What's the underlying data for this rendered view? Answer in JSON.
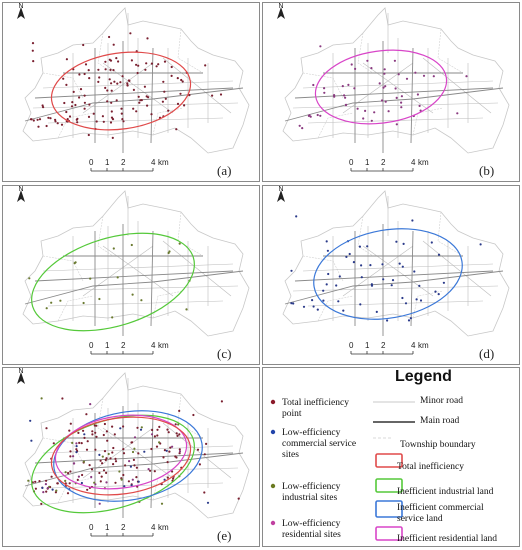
{
  "panels": [
    {
      "label": "(a)",
      "ellipses": [
        {
          "color": "#e04a4a"
        }
      ],
      "points": [
        {
          "color": "#7a2030",
          "density": "high"
        }
      ]
    },
    {
      "label": "(b)",
      "ellipses": [
        {
          "color": "#d845c8"
        }
      ],
      "points": [
        {
          "color": "#8a3a80",
          "density": "medium"
        }
      ]
    },
    {
      "label": "(c)",
      "ellipses": [
        {
          "color": "#55c93a"
        }
      ],
      "points": [
        {
          "color": "#6a7a30",
          "density": "low"
        }
      ]
    },
    {
      "label": "(d)",
      "ellipses": [
        {
          "color": "#3b78d8"
        }
      ],
      "points": [
        {
          "color": "#2a3a8a",
          "density": "medium"
        }
      ]
    },
    {
      "label": "(e)",
      "ellipses": [
        {
          "color": "#55c93a"
        },
        {
          "color": "#3b78d8"
        },
        {
          "color": "#d845c8"
        },
        {
          "color": "#e04a4a"
        }
      ],
      "points": [
        {
          "color": "#7a2030",
          "density": "high"
        },
        {
          "color": "#2a3a8a",
          "density": "low"
        },
        {
          "color": "#6a7a30",
          "density": "low"
        },
        {
          "color": "#8a3a80",
          "density": "low"
        }
      ]
    }
  ],
  "north_label": "N",
  "scale": {
    "ticks": [
      "0",
      "1",
      "2",
      "4"
    ],
    "unit": "km"
  },
  "legend": {
    "title": "Legend",
    "point_items": [
      {
        "label_lines": [
          "Total inefficiency",
          "point"
        ],
        "color": "#8b1a2a"
      },
      {
        "label_lines": [
          "Low-efficiency",
          "commercial service",
          "sites"
        ],
        "color": "#2244aa"
      },
      {
        "label_lines": [
          "Low-efficiency",
          "industrial sites"
        ],
        "color": "#6a7a20"
      },
      {
        "label_lines": [
          "Low-efficiency",
          "residential sites"
        ],
        "color": "#c040a0"
      }
    ],
    "line_items": [
      {
        "label": "Minor road",
        "color": "#b8b8b8"
      },
      {
        "label": "Main road",
        "color": "#333333"
      },
      {
        "label": "Township boundary",
        "color": "#cccccc"
      }
    ],
    "box_items": [
      {
        "label_lines": [
          "Total inefficiency"
        ],
        "color": "#e04a4a"
      },
      {
        "label_lines": [
          "Inefficient industrial land"
        ],
        "color": "#55c93a"
      },
      {
        "label_lines": [
          "Inefficient commercial",
          "service land"
        ],
        "color": "#3b78d8"
      },
      {
        "label_lines": [
          "Inefficient residential land"
        ],
        "color": "#d845c8"
      }
    ]
  }
}
